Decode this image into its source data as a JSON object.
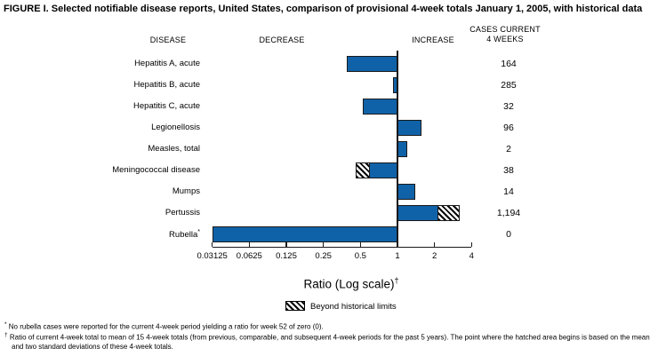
{
  "title": "FIGURE I. Selected notifiable disease reports, United States, comparison of provisional 4-week totals January 1, 2005, with historical data",
  "columns": {
    "disease": "DISEASE",
    "decrease": "DECREASE",
    "increase": "INCREASE",
    "cases_line1": "CASES CURRENT",
    "cases_line2": "4 WEEKS"
  },
  "chart_data": {
    "type": "bar",
    "orientation": "horizontal",
    "scale": "log2",
    "baseline": 1,
    "axis": {
      "title": "Ratio (Log scale)",
      "title_sup": "†",
      "ticks": [
        0.03125,
        0.0625,
        0.125,
        0.25,
        0.5,
        1,
        2,
        4
      ],
      "tick_labels": [
        "0.03125",
        "0.0625",
        "0.125",
        "0.25",
        "0.5",
        "1",
        "2",
        "4"
      ],
      "min": 0.03125,
      "max": 4
    },
    "rows": [
      {
        "label": "Hepatitis A, acute",
        "sup": "",
        "ratio": 0.39,
        "cases": "164",
        "beyond": null
      },
      {
        "label": "Hepatitis B, acute",
        "sup": "",
        "ratio": 0.92,
        "cases": "285",
        "beyond": null
      },
      {
        "label": "Hepatitis C, acute",
        "sup": "",
        "ratio": 0.52,
        "cases": "32",
        "beyond": null
      },
      {
        "label": "Legionellosis",
        "sup": "",
        "ratio": 1.58,
        "cases": "96",
        "beyond": null
      },
      {
        "label": "Measles, total",
        "sup": "",
        "ratio": 1.21,
        "cases": "2",
        "beyond": null
      },
      {
        "label": "Meningococcal disease",
        "sup": "",
        "ratio": 0.46,
        "cases": "38",
        "beyond": {
          "from": 0.46,
          "to": 0.6
        }
      },
      {
        "label": "Mumps",
        "sup": "",
        "ratio": 1.39,
        "cases": "14",
        "beyond": null
      },
      {
        "label": "Pertussis",
        "sup": "",
        "ratio": 3.2,
        "cases": "1,194",
        "beyond": {
          "from": 2.1,
          "to": 3.2
        }
      },
      {
        "label": "Rubella",
        "sup": "*",
        "ratio": 0,
        "bar_drawn_to": 0.03125,
        "cases": "0",
        "beyond": null
      }
    ],
    "legend": {
      "label": "Beyond historical limits",
      "swatch": "hatched-beyond-limits"
    }
  },
  "colors": {
    "bar": "#1062a8",
    "bar_border": "#1a1a1a",
    "text": "#000000"
  },
  "footnotes": [
    {
      "marker": "*",
      "text": "No rubella cases were reported for the current 4-week period yielding a ratio for week 52 of zero (0)."
    },
    {
      "marker": "†",
      "text": "Ratio of current 4-week total to mean of 15 4-week totals (from previous, comparable, and subsequent 4-week periods for the past 5 years). The point where the hatched area begins is based on the mean and two standard deviations of these 4-week totals."
    }
  ]
}
